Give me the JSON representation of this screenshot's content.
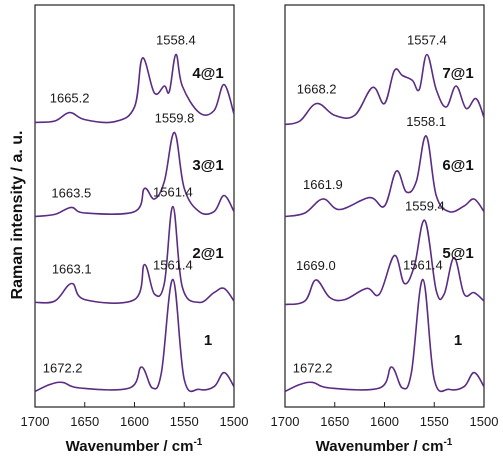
{
  "y_axis_label": "Raman intensity / a. u.",
  "x_axis_label": {
    "text": "Wavenumber / cm",
    "superscript": "-1"
  },
  "line_color": "#5b2c83",
  "chart_data": [
    {
      "type": "line",
      "panel": "left",
      "xlim": [
        1700,
        1500
      ],
      "x_reversed": true,
      "x_ticks": [
        "1700",
        "1650",
        "1600",
        "1550",
        "1500"
      ],
      "ylabel": "Raman intensity / a. u.",
      "xlabel": "Wavenumber / cm-1",
      "grid": false,
      "series": [
        {
          "name": "4@1",
          "peak_labels": [
            {
              "x": 1558.4,
              "text": "1558.4"
            },
            {
              "x": 1665.2,
              "text": "1665.2"
            }
          ],
          "points": [
            [
              1700,
              0.08
            ],
            [
              1680,
              0.1
            ],
            [
              1665.2,
              0.22
            ],
            [
              1650,
              0.12
            ],
            [
              1620,
              0.09
            ],
            [
              1600,
              0.3
            ],
            [
              1592,
              1.0
            ],
            [
              1580,
              0.5
            ],
            [
              1570,
              0.6
            ],
            [
              1565,
              0.52
            ],
            [
              1558.4,
              1.05
            ],
            [
              1552,
              0.6
            ],
            [
              1535,
              0.22
            ],
            [
              1520,
              0.25
            ],
            [
              1510,
              0.62
            ],
            [
              1500,
              0.2
            ]
          ]
        },
        {
          "name": "3@1",
          "peak_labels": [
            {
              "x": 1559.8,
              "text": "1559.8"
            },
            {
              "x": 1663.5,
              "text": "1663.5"
            }
          ],
          "points": [
            [
              1700,
              0.05
            ],
            [
              1680,
              0.08
            ],
            [
              1663.5,
              0.18
            ],
            [
              1650,
              0.1
            ],
            [
              1600,
              0.12
            ],
            [
              1590,
              0.45
            ],
            [
              1580,
              0.3
            ],
            [
              1570,
              0.55
            ],
            [
              1559.8,
              1.25
            ],
            [
              1550,
              0.45
            ],
            [
              1535,
              0.12
            ],
            [
              1520,
              0.12
            ],
            [
              1510,
              0.35
            ],
            [
              1500,
              0.12
            ]
          ]
        },
        {
          "name": "2@1",
          "peak_labels": [
            {
              "x": 1561.4,
              "text": "1561.4"
            },
            {
              "x": 1663.1,
              "text": "1663.1"
            }
          ],
          "points": [
            [
              1700,
              0.08
            ],
            [
              1680,
              0.1
            ],
            [
              1663.1,
              0.35
            ],
            [
              1650,
              0.12
            ],
            [
              1600,
              0.12
            ],
            [
              1590,
              0.62
            ],
            [
              1580,
              0.2
            ],
            [
              1570,
              0.35
            ],
            [
              1561.4,
              1.45
            ],
            [
              1552,
              0.3
            ],
            [
              1535,
              0.08
            ],
            [
              1520,
              0.22
            ],
            [
              1510,
              0.28
            ],
            [
              1500,
              0.1
            ]
          ]
        },
        {
          "name": "1",
          "peak_labels": [
            {
              "x": 1561.4,
              "text": "1561.4"
            },
            {
              "x": 1672.2,
              "text": "1672.2"
            }
          ],
          "points": [
            [
              1700,
              0.05
            ],
            [
              1685,
              0.15
            ],
            [
              1672.2,
              0.18
            ],
            [
              1655,
              0.1
            ],
            [
              1605,
              0.1
            ],
            [
              1593,
              0.4
            ],
            [
              1582,
              0.1
            ],
            [
              1573,
              0.32
            ],
            [
              1561.4,
              1.65
            ],
            [
              1550,
              0.22
            ],
            [
              1535,
              0.08
            ],
            [
              1520,
              0.12
            ],
            [
              1510,
              0.32
            ],
            [
              1500,
              0.12
            ]
          ]
        }
      ]
    },
    {
      "type": "line",
      "panel": "right",
      "xlim": [
        1700,
        1500
      ],
      "x_reversed": true,
      "x_ticks": [
        "1700",
        "1650",
        "1600",
        "1550",
        "1500"
      ],
      "xlabel": "Wavenumber / cm-1",
      "grid": false,
      "series": [
        {
          "name": "7@1",
          "peak_labels": [
            {
              "x": 1557.4,
              "text": "1557.4"
            },
            {
              "x": 1668.2,
              "text": "1668.2"
            }
          ],
          "points": [
            [
              1700,
              0.05
            ],
            [
              1685,
              0.1
            ],
            [
              1668.2,
              0.35
            ],
            [
              1650,
              0.18
            ],
            [
              1630,
              0.18
            ],
            [
              1612,
              0.58
            ],
            [
              1600,
              0.35
            ],
            [
              1590,
              0.82
            ],
            [
              1582,
              0.75
            ],
            [
              1572,
              0.68
            ],
            [
              1565,
              0.55
            ],
            [
              1557.4,
              1.05
            ],
            [
              1548,
              0.55
            ],
            [
              1538,
              0.3
            ],
            [
              1528,
              0.6
            ],
            [
              1518,
              0.28
            ],
            [
              1508,
              0.42
            ],
            [
              1500,
              0.15
            ]
          ]
        },
        {
          "name": "6@1",
          "peak_labels": [
            {
              "x": 1558.1,
              "text": "1558.1"
            },
            {
              "x": 1661.9,
              "text": "1661.9"
            }
          ],
          "points": [
            [
              1700,
              0.05
            ],
            [
              1680,
              0.1
            ],
            [
              1661.9,
              0.3
            ],
            [
              1645,
              0.15
            ],
            [
              1615,
              0.32
            ],
            [
              1600,
              0.2
            ],
            [
              1588,
              0.7
            ],
            [
              1578,
              0.4
            ],
            [
              1568,
              0.55
            ],
            [
              1558.1,
              1.2
            ],
            [
              1548,
              0.35
            ],
            [
              1535,
              0.12
            ],
            [
              1520,
              0.2
            ],
            [
              1510,
              0.3
            ],
            [
              1500,
              0.12
            ]
          ]
        },
        {
          "name": "5@1",
          "peak_labels": [
            {
              "x": 1559.4,
              "text": "1559.4"
            },
            {
              "x": 1669.0,
              "text": "1669.0"
            }
          ],
          "points": [
            [
              1700,
              0.05
            ],
            [
              1680,
              0.1
            ],
            [
              1669.0,
              0.4
            ],
            [
              1655,
              0.15
            ],
            [
              1640,
              0.12
            ],
            [
              1618,
              0.28
            ],
            [
              1605,
              0.2
            ],
            [
              1590,
              0.75
            ],
            [
              1580,
              0.35
            ],
            [
              1570,
              0.6
            ],
            [
              1559.4,
              1.25
            ],
            [
              1548,
              0.25
            ],
            [
              1540,
              0.2
            ],
            [
              1530,
              0.72
            ],
            [
              1520,
              0.2
            ],
            [
              1510,
              0.22
            ],
            [
              1500,
              0.1
            ]
          ]
        },
        {
          "name": "1",
          "peak_labels": [
            {
              "x": 1561.4,
              "text": "1561.4"
            },
            {
              "x": 1672.2,
              "text": "1672.2"
            }
          ],
          "points": [
            [
              1700,
              0.05
            ],
            [
              1685,
              0.15
            ],
            [
              1672.2,
              0.18
            ],
            [
              1655,
              0.1
            ],
            [
              1605,
              0.1
            ],
            [
              1593,
              0.4
            ],
            [
              1582,
              0.1
            ],
            [
              1573,
              0.32
            ],
            [
              1561.4,
              1.65
            ],
            [
              1550,
              0.22
            ],
            [
              1535,
              0.08
            ],
            [
              1520,
              0.12
            ],
            [
              1510,
              0.32
            ],
            [
              1500,
              0.12
            ]
          ]
        }
      ]
    }
  ]
}
